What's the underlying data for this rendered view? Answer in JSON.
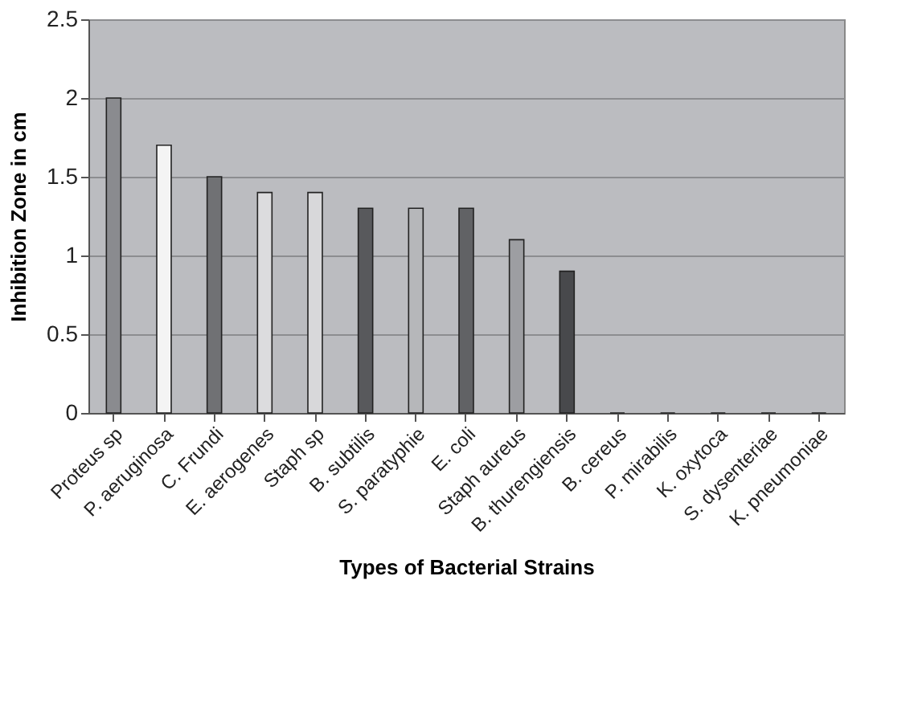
{
  "chart_data": {
    "type": "bar",
    "xlabel": "Types of Bacterial Strains",
    "ylabel": "Inhibition Zone in cm",
    "categories": [
      "Proteus sp",
      "P. aeruginosa",
      "C.  Frundi",
      "E.  aerogenes",
      "Staph sp",
      "B.  subtilis",
      "S.  paratyphie",
      "E. coli",
      "Staph aureus",
      "B.  thurengiensis",
      "B.  cereus",
      "P. mirabilis",
      "K.  oxytoca",
      "S.  dysenteriae",
      "K. pneumoniae"
    ],
    "values": [
      2,
      1.7,
      1.5,
      1.4,
      1.4,
      1.3,
      1.3,
      1.3,
      1.1,
      0.9,
      0,
      0,
      0,
      0,
      0
    ],
    "colors": [
      "#8a8b8f",
      "#f4f4f4",
      "#707174",
      "#dcdcde",
      "#d8d8da",
      "#58595c",
      "#b6b7ba",
      "#616265",
      "#9d9ea2",
      "#48494c",
      "#222222",
      "#222222",
      "#222222",
      "#222222",
      "#222222"
    ],
    "ylim": [
      0,
      2.5
    ],
    "yticks": [
      0,
      0.5,
      1,
      1.5,
      2,
      2.5
    ],
    "grid": "y"
  }
}
